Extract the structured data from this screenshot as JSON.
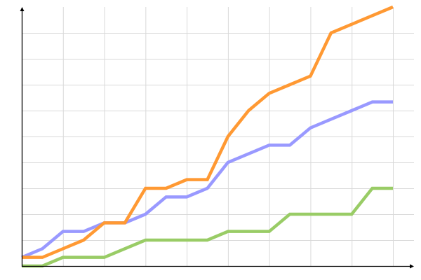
{
  "chart_data": {
    "type": "line",
    "title": "",
    "xlabel": "",
    "ylabel": "",
    "xlim": [
      0,
      18
    ],
    "ylim": [
      0,
      30
    ],
    "grid": true,
    "x_grid_step": 2,
    "y_grid_step": 3,
    "x": [
      0,
      1,
      2,
      3,
      4,
      5,
      6,
      7,
      8,
      9,
      10,
      11,
      12,
      13,
      14,
      15,
      16,
      17,
      18
    ],
    "series": [
      {
        "color": "#9999ff",
        "values": [
          1,
          2,
          4,
          4,
          5,
          5,
          6,
          8,
          8,
          9,
          12,
          13,
          14,
          14,
          16,
          17,
          18,
          19,
          19
        ]
      },
      {
        "color": "#99cc66",
        "values": [
          0,
          0,
          1,
          1,
          1,
          2,
          3,
          3,
          3,
          3,
          4,
          4,
          4,
          6,
          6,
          6,
          6,
          9,
          9
        ]
      },
      {
        "color": "#ff9933",
        "values": [
          1,
          1,
          2,
          3,
          5,
          5,
          9,
          9,
          10,
          10,
          15,
          18,
          20,
          21,
          22,
          27,
          28,
          29,
          30
        ]
      }
    ],
    "grid_color": "#d9d9d9",
    "axis_color": "#000000"
  }
}
